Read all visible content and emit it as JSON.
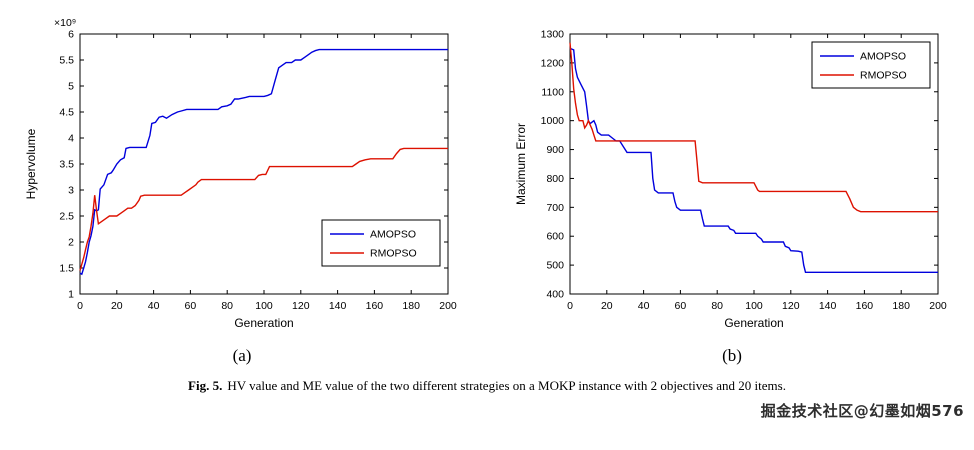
{
  "figure": {
    "caption_prefix": "Fig. 5.",
    "caption_text": "HV value and ME value of the two different strategies on a MOKP instance with 2 objectives and 20 items.",
    "sublabel_a": "(a)",
    "sublabel_b": "(b)"
  },
  "watermark": "掘金技术社区@幻墨如烟576",
  "chart_data": [
    {
      "type": "line",
      "title": "",
      "xlabel": "Generation",
      "ylabel": "Hypervolume",
      "y_scale_label": "×10⁹",
      "y_unit": 1000000000,
      "xlim": [
        0,
        200
      ],
      "ylim": [
        1,
        6
      ],
      "xticks": [
        0,
        20,
        40,
        60,
        80,
        100,
        120,
        140,
        160,
        180,
        200
      ],
      "yticks": [
        1,
        1.5,
        2,
        2.5,
        3,
        3.5,
        4,
        4.5,
        5,
        5.5,
        6
      ],
      "grid": false,
      "legend_position": "bottom-right",
      "series": [
        {
          "name": "AMOPSO",
          "color": "#0000dd",
          "points": [
            [
              0,
              1.4
            ],
            [
              1,
              1.38
            ],
            [
              2,
              1.5
            ],
            [
              3,
              1.62
            ],
            [
              4,
              1.8
            ],
            [
              5,
              2.0
            ],
            [
              6,
              2.12
            ],
            [
              7,
              2.3
            ],
            [
              8,
              2.62
            ],
            [
              9,
              2.6
            ],
            [
              10,
              2.62
            ],
            [
              11,
              3.02
            ],
            [
              13,
              3.1
            ],
            [
              15,
              3.3
            ],
            [
              17,
              3.33
            ],
            [
              18,
              3.38
            ],
            [
              20,
              3.5
            ],
            [
              22,
              3.58
            ],
            [
              24,
              3.62
            ],
            [
              25,
              3.8
            ],
            [
              27,
              3.82
            ],
            [
              36,
              3.82
            ],
            [
              38,
              4.05
            ],
            [
              39,
              4.28
            ],
            [
              41,
              4.3
            ],
            [
              43,
              4.4
            ],
            [
              45,
              4.42
            ],
            [
              47,
              4.38
            ],
            [
              50,
              4.45
            ],
            [
              53,
              4.5
            ],
            [
              55,
              4.52
            ],
            [
              58,
              4.55
            ],
            [
              60,
              4.55
            ],
            [
              75,
              4.55
            ],
            [
              77,
              4.6
            ],
            [
              80,
              4.62
            ],
            [
              82,
              4.65
            ],
            [
              84,
              4.75
            ],
            [
              86,
              4.75
            ],
            [
              90,
              4.78
            ],
            [
              92,
              4.8
            ],
            [
              100,
              4.8
            ],
            [
              102,
              4.82
            ],
            [
              104,
              4.85
            ],
            [
              106,
              5.1
            ],
            [
              108,
              5.35
            ],
            [
              110,
              5.4
            ],
            [
              112,
              5.45
            ],
            [
              115,
              5.45
            ],
            [
              117,
              5.5
            ],
            [
              120,
              5.5
            ],
            [
              122,
              5.55
            ],
            [
              124,
              5.6
            ],
            [
              126,
              5.65
            ],
            [
              128,
              5.68
            ],
            [
              130,
              5.7
            ],
            [
              160,
              5.7
            ],
            [
              200,
              5.7
            ]
          ]
        },
        {
          "name": "RMOPSO",
          "color": "#dd1100",
          "points": [
            [
              0,
              1.45
            ],
            [
              2,
              1.7
            ],
            [
              3,
              1.85
            ],
            [
              4,
              2.0
            ],
            [
              5,
              2.1
            ],
            [
              6,
              2.3
            ],
            [
              7,
              2.55
            ],
            [
              8,
              2.9
            ],
            [
              9,
              2.6
            ],
            [
              10,
              2.35
            ],
            [
              12,
              2.4
            ],
            [
              14,
              2.45
            ],
            [
              16,
              2.5
            ],
            [
              20,
              2.5
            ],
            [
              22,
              2.55
            ],
            [
              24,
              2.6
            ],
            [
              26,
              2.65
            ],
            [
              28,
              2.65
            ],
            [
              30,
              2.7
            ],
            [
              32,
              2.8
            ],
            [
              33,
              2.88
            ],
            [
              35,
              2.9
            ],
            [
              55,
              2.9
            ],
            [
              57,
              2.95
            ],
            [
              59,
              3.0
            ],
            [
              61,
              3.05
            ],
            [
              63,
              3.1
            ],
            [
              64,
              3.15
            ],
            [
              66,
              3.2
            ],
            [
              95,
              3.2
            ],
            [
              97,
              3.28
            ],
            [
              99,
              3.3
            ],
            [
              101,
              3.3
            ],
            [
              103,
              3.45
            ],
            [
              105,
              3.45
            ],
            [
              148,
              3.45
            ],
            [
              150,
              3.5
            ],
            [
              152,
              3.55
            ],
            [
              155,
              3.58
            ],
            [
              158,
              3.6
            ],
            [
              170,
              3.6
            ],
            [
              172,
              3.7
            ],
            [
              174,
              3.78
            ],
            [
              176,
              3.8
            ],
            [
              200,
              3.8
            ]
          ]
        }
      ]
    },
    {
      "type": "line",
      "title": "",
      "xlabel": "Generation",
      "ylabel": "Maximum Error",
      "y_scale_label": "",
      "y_unit": 1,
      "xlim": [
        0,
        200
      ],
      "ylim": [
        400,
        1300
      ],
      "xticks": [
        0,
        20,
        40,
        60,
        80,
        100,
        120,
        140,
        160,
        180,
        200
      ],
      "yticks": [
        400,
        500,
        600,
        700,
        800,
        900,
        1000,
        1100,
        1200,
        1300
      ],
      "grid": false,
      "legend_position": "top-right",
      "series": [
        {
          "name": "AMOPSO",
          "color": "#0000dd",
          "points": [
            [
              0,
              1250
            ],
            [
              2,
              1245
            ],
            [
              3,
              1180
            ],
            [
              4,
              1150
            ],
            [
              6,
              1125
            ],
            [
              8,
              1100
            ],
            [
              9,
              1050
            ],
            [
              10,
              1000
            ],
            [
              11,
              990
            ],
            [
              12,
              995
            ],
            [
              13,
              1000
            ],
            [
              14,
              985
            ],
            [
              15,
              960
            ],
            [
              17,
              950
            ],
            [
              21,
              950
            ],
            [
              23,
              940
            ],
            [
              25,
              930
            ],
            [
              27,
              930
            ],
            [
              29,
              910
            ],
            [
              31,
              890
            ],
            [
              44,
              890
            ],
            [
              45,
              800
            ],
            [
              46,
              760
            ],
            [
              48,
              750
            ],
            [
              56,
              750
            ],
            [
              57,
              720
            ],
            [
              58,
              700
            ],
            [
              60,
              690
            ],
            [
              71,
              690
            ],
            [
              72,
              660
            ],
            [
              73,
              635
            ],
            [
              86,
              635
            ],
            [
              87,
              625
            ],
            [
              89,
              620
            ],
            [
              90,
              610
            ],
            [
              101,
              610
            ],
            [
              102,
              600
            ],
            [
              104,
              590
            ],
            [
              105,
              580
            ],
            [
              116,
              580
            ],
            [
              117,
              565
            ],
            [
              119,
              560
            ],
            [
              120,
              550
            ],
            [
              124,
              548
            ],
            [
              126,
              545
            ],
            [
              127,
              500
            ],
            [
              128,
              475
            ],
            [
              160,
              475
            ],
            [
              200,
              475
            ]
          ]
        },
        {
          "name": "RMOPSO",
          "color": "#dd1100",
          "points": [
            [
              0,
              1270
            ],
            [
              1,
              1200
            ],
            [
              2,
              1110
            ],
            [
              3,
              1060
            ],
            [
              4,
              1020
            ],
            [
              5,
              1000
            ],
            [
              7,
              1000
            ],
            [
              8,
              975
            ],
            [
              9,
              985
            ],
            [
              10,
              1000
            ],
            [
              11,
              985
            ],
            [
              12,
              970
            ],
            [
              13,
              950
            ],
            [
              14,
              930
            ],
            [
              68,
              930
            ],
            [
              69,
              860
            ],
            [
              70,
              790
            ],
            [
              72,
              785
            ],
            [
              100,
              785
            ],
            [
              102,
              760
            ],
            [
              103,
              755
            ],
            [
              150,
              755
            ],
            [
              152,
              730
            ],
            [
              154,
              700
            ],
            [
              156,
              690
            ],
            [
              158,
              685
            ],
            [
              200,
              685
            ]
          ]
        }
      ]
    }
  ]
}
